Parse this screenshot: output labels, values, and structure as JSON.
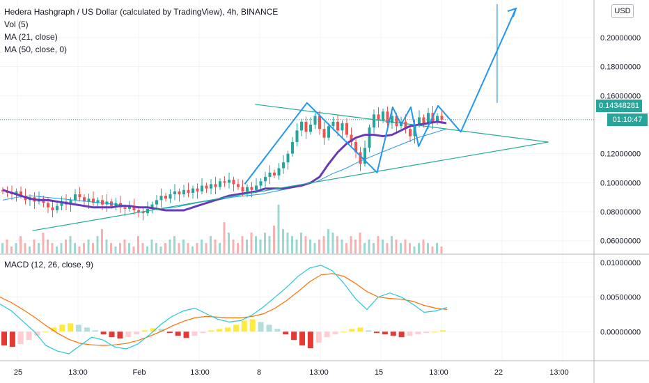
{
  "header": {
    "title": "Hedera Hashgraph / US Dollar (calculated by TradingView), 4h, BINANCE",
    "studies": [
      "Vol (5)",
      "MA (21, close)",
      "MA (50, close, 0)"
    ],
    "currency_button": "USD"
  },
  "macd_label": "MACD (12, 26, close, 9)",
  "last_price": "0.14348281",
  "countdown": "01:10:47",
  "colors": {
    "up": "#26a69a",
    "down": "#ef5350",
    "ma21": "#673ab7",
    "ma50": "#2196f3",
    "drawing": "#2196f3",
    "trendline": "#22ab94",
    "macd": "#26c6da",
    "signal": "#ff6d00",
    "hist_pos_strong": "#ffeb3b",
    "hist_pos_weak": "#b2dfdb",
    "hist_neg_strong": "#e53935",
    "hist_neg_weak": "#ffcdd2"
  },
  "chart_data": [
    {
      "type": "candlestick",
      "title": "Hedera Hashgraph / US Dollar (calculated by TradingView), 4h, BINANCE",
      "x_tick_labels": [
        "25",
        "13:00",
        "Feb",
        "13:00",
        "8",
        "13:00",
        "15",
        "13:00",
        "22",
        "13:00"
      ],
      "y_tick_labels": [
        "0.20000000",
        "0.18000000",
        "0.16000000",
        "0.12000000",
        "0.10000000",
        "0.08000000",
        "0.06000000"
      ],
      "ylim": [
        0.057,
        0.222
      ],
      "close_series": [
        0.094,
        0.093,
        0.092,
        0.094,
        0.091,
        0.088,
        0.09,
        0.087,
        0.089,
        0.086,
        0.083,
        0.081,
        0.084,
        0.087,
        0.085,
        0.088,
        0.092,
        0.09,
        0.087,
        0.089,
        0.086,
        0.088,
        0.085,
        0.087,
        0.084,
        0.086,
        0.083,
        0.082,
        0.084,
        0.081,
        0.08,
        0.079,
        0.082,
        0.085,
        0.088,
        0.091,
        0.089,
        0.092,
        0.094,
        0.092,
        0.095,
        0.093,
        0.096,
        0.094,
        0.098,
        0.096,
        0.099,
        0.097,
        0.101,
        0.1,
        0.102,
        0.099,
        0.097,
        0.094,
        0.097,
        0.095,
        0.098,
        0.101,
        0.104,
        0.107,
        0.105,
        0.11,
        0.114,
        0.12,
        0.128,
        0.136,
        0.142,
        0.135,
        0.14,
        0.146,
        0.137,
        0.131,
        0.139,
        0.142,
        0.136,
        0.141,
        0.133,
        0.128,
        0.121,
        0.113,
        0.124,
        0.138,
        0.147,
        0.143,
        0.149,
        0.141,
        0.146,
        0.139,
        0.142,
        0.137,
        0.132,
        0.14,
        0.145,
        0.141,
        0.148,
        0.142,
        0.146,
        0.1435
      ],
      "ma21": [
        0.095,
        0.093,
        0.091,
        0.089,
        0.088,
        0.088,
        0.087,
        0.086,
        0.085,
        0.084,
        0.083,
        0.083,
        0.083,
        0.084,
        0.084,
        0.083,
        0.083,
        0.082,
        0.081,
        0.081,
        0.081,
        0.083,
        0.085,
        0.087,
        0.089,
        0.091,
        0.092,
        0.093,
        0.094,
        0.096,
        0.096,
        0.096,
        0.097,
        0.098,
        0.1,
        0.104,
        0.113,
        0.121,
        0.127,
        0.131,
        0.133,
        0.133,
        0.132,
        0.133,
        0.136,
        0.139,
        0.14,
        0.141,
        0.142,
        0.141
      ],
      "ma50": [
        0.088,
        0.09,
        0.091,
        0.09,
        0.089,
        0.088,
        0.087,
        0.086,
        0.085,
        0.084,
        0.083,
        0.082,
        0.083,
        0.085,
        0.087,
        0.088,
        0.09,
        0.091,
        0.092,
        0.094,
        0.096,
        0.098,
        0.101,
        0.106,
        0.11,
        0.115,
        0.119,
        0.123,
        0.127,
        0.131,
        0.134,
        0.137
      ],
      "drawings": {
        "triangle_upper": [
          [
            0.393,
            0.154
          ],
          [
            0.845,
            0.128
          ]
        ],
        "triangle_lower": [
          [
            0.05,
            0.067
          ],
          [
            0.845,
            0.128
          ]
        ],
        "pattern_path": [
          [
            0.377,
            0.099
          ],
          [
            0.473,
            0.155
          ],
          [
            0.581,
            0.107
          ],
          [
            0.605,
            0.152
          ],
          [
            0.618,
            0.14
          ],
          [
            0.633,
            0.152
          ],
          [
            0.645,
            0.125
          ],
          [
            0.675,
            0.153
          ],
          [
            0.71,
            0.135
          ],
          [
            0.795,
            0.22
          ]
        ],
        "target_line": [
          [
            0.766,
            0.223
          ],
          [
            0.766,
            0.155
          ]
        ]
      }
    },
    {
      "type": "bar",
      "title": "Vol (5)",
      "values": [
        3,
        4,
        2,
        3,
        5,
        3,
        2,
        4,
        3,
        6,
        4,
        3,
        2,
        3,
        4,
        5,
        3,
        2,
        3,
        4,
        3,
        5,
        7,
        4,
        3,
        2,
        3,
        4,
        3,
        2,
        5,
        3,
        2,
        4,
        3,
        2,
        3,
        4,
        5,
        3,
        4,
        3,
        2,
        3,
        4,
        3,
        5,
        4,
        3,
        9,
        6,
        4,
        3,
        5,
        4,
        6,
        5,
        4,
        6,
        5,
        8,
        14,
        7,
        6,
        5,
        4,
        6,
        5,
        4,
        3,
        4,
        5,
        7,
        6,
        5,
        4,
        3,
        5,
        4,
        6,
        3,
        4,
        3,
        5,
        4,
        3,
        5,
        4,
        3,
        4,
        3,
        2,
        3,
        4,
        3,
        2,
        3,
        2
      ]
    },
    {
      "type": "line",
      "title": "MACD (12, 26, close, 9)",
      "y_tick_labels": [
        "0.01000000",
        "0.00500000",
        "0.00000000"
      ],
      "ylim": [
        -0.0042,
        0.0105
      ],
      "macd": [
        0.004,
        0.003,
        0.0015,
        0.0,
        -0.002,
        -0.0028,
        -0.0032,
        -0.002,
        -0.0008,
        -0.0012,
        -0.0022,
        -0.0025,
        -0.0018,
        -0.0005,
        0.001,
        0.0022,
        0.003,
        0.0034,
        0.0026,
        0.0018,
        0.0014,
        0.0016,
        0.0024,
        0.0036,
        0.005,
        0.0064,
        0.008,
        0.0092,
        0.0096,
        0.0088,
        0.007,
        0.0048,
        0.0032,
        0.005,
        0.0056,
        0.005,
        0.004,
        0.0028,
        0.003,
        0.0035
      ],
      "signal": [
        0.005,
        0.0042,
        0.0032,
        0.0021,
        0.0009,
        -0.0002,
        -0.0011,
        -0.0017,
        -0.0019,
        -0.002,
        -0.0019,
        -0.0017,
        -0.0013,
        -0.0007,
        0.0,
        0.0008,
        0.0015,
        0.002,
        0.0022,
        0.0021,
        0.002,
        0.002,
        0.0022,
        0.0026,
        0.0034,
        0.0045,
        0.0058,
        0.0072,
        0.0082,
        0.0084,
        0.008,
        0.007,
        0.0058,
        0.005,
        0.0048,
        0.0047,
        0.0044,
        0.0038,
        0.0034,
        0.0032
      ],
      "histogram": [
        -0.002,
        -0.0022,
        -0.0018,
        -0.0012,
        -0.0006,
        0.0,
        0.0006,
        0.001,
        0.0012,
        0.001,
        0.0006,
        0.0002,
        -0.0004,
        -0.0008,
        -0.001,
        -0.0008,
        -0.0004,
        0.0002,
        0.0005,
        0.0004,
        -0.0002,
        -0.0006,
        -0.0009,
        -0.0006,
        -0.0002,
        0.0002,
        0.0004,
        0.0006,
        0.001,
        0.0016,
        0.0018,
        0.0014,
        0.001,
        0.0004,
        -0.0004,
        -0.0012,
        -0.002,
        -0.0024,
        -0.0016,
        -0.0008,
        -0.0004,
        0.0,
        0.0004,
        0.0006,
        0.0002,
        -0.0002,
        -0.0004,
        -0.0006,
        -0.0008,
        -0.0006,
        -0.0004,
        -0.0002,
        0.0,
        0.0002
      ]
    }
  ]
}
